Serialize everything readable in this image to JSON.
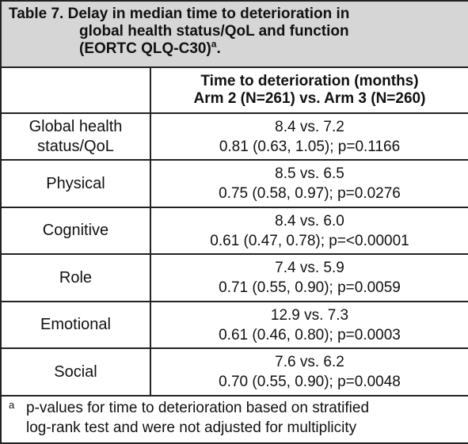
{
  "table": {
    "caption_line1": "Table 7. Delay in median time to deterioration in",
    "caption_line2": "global health status/QoL and function",
    "caption_line3": "(EORTC QLQ-C30)",
    "caption_superscript": "a",
    "caption_suffix": ".",
    "header_col1": "",
    "header_col2_line1": "Time to deterioration (months)",
    "header_col2_line2": "Arm 2 (N=261) vs. Arm 3 (N=260)",
    "rows": [
      {
        "label_line1": "Global health",
        "label_line2": "status/QoL",
        "median": "8.4 vs. 7.2",
        "stats": "0.81 (0.63, 1.05); p=0.1166"
      },
      {
        "label_line1": "Physical",
        "label_line2": "",
        "median": "8.5 vs. 6.5",
        "stats": "0.75 (0.58, 0.97); p=0.0276"
      },
      {
        "label_line1": "Cognitive",
        "label_line2": "",
        "median": "8.4 vs. 6.0",
        "stats": "0.61 (0.47, 0.78); p=<0.00001"
      },
      {
        "label_line1": "Role",
        "label_line2": "",
        "median": "7.4 vs. 5.9",
        "stats": "0.71 (0.55, 0.90); p=0.0059"
      },
      {
        "label_line1": "Emotional",
        "label_line2": "",
        "median": "12.9 vs. 7.3",
        "stats": "0.61 (0.46, 0.80); p=0.0003"
      },
      {
        "label_line1": "Social",
        "label_line2": "",
        "median": "7.6 vs. 6.2",
        "stats": "0.70 (0.55, 0.90); p=0.0048"
      }
    ],
    "footnote_mark": "a",
    "footnote_line1": "p-values for time to deterioration based on stratified",
    "footnote_line2": "log-rank test and were not adjusted for multiplicity"
  }
}
